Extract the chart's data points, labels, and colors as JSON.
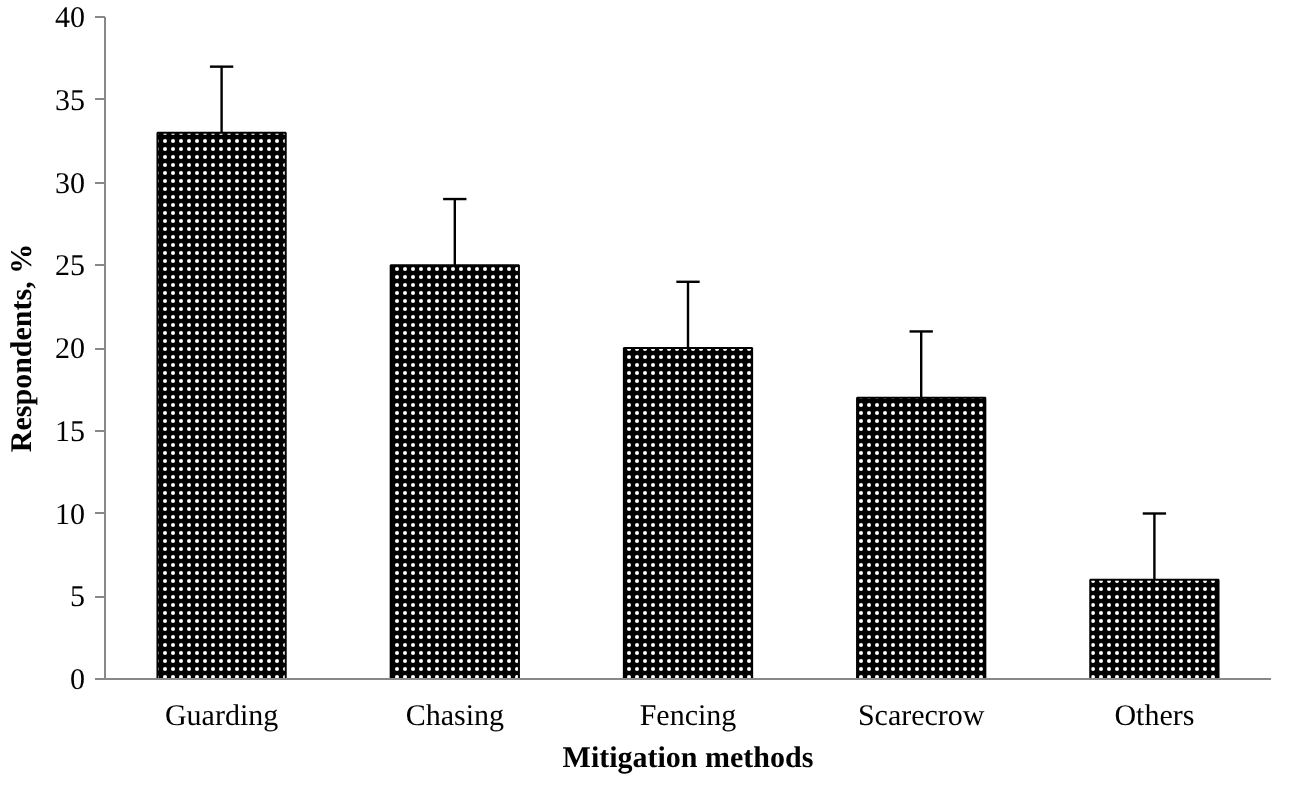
{
  "chart_data": {
    "type": "bar",
    "xlabel": "Mitigation methods",
    "ylabel": "Respondents, %",
    "categories": [
      "Guarding",
      "Chasing",
      "Fencing",
      "Scarecrow",
      "Others"
    ],
    "values": [
      33,
      25,
      20,
      17,
      6
    ],
    "errors": [
      [
        33,
        37
      ],
      [
        25,
        29
      ],
      [
        20,
        24
      ],
      [
        17,
        21
      ],
      [
        6,
        10
      ]
    ],
    "color": "#000000",
    "ylim": [
      0,
      40
    ],
    "yticks": [
      0,
      5,
      10,
      15,
      20,
      25,
      30,
      35,
      40
    ],
    "grid": false
  }
}
